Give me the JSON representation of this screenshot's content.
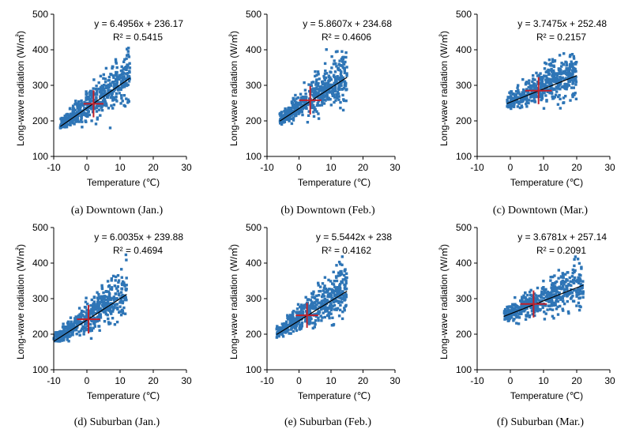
{
  "chart_data": [
    {
      "type": "scatter",
      "caption": "(a) Downtown (Jan.)",
      "xlabel": "Temperature (℃)",
      "ylabel": "Long-wave radiation (W/㎡)",
      "xlim": [
        -10,
        30
      ],
      "ylim": [
        100,
        500
      ],
      "xticks": [
        "-10",
        "0",
        "10",
        "20",
        "30"
      ],
      "yticks": [
        "100",
        "200",
        "300",
        "400",
        "500"
      ],
      "equation": "y = 6.4956x + 236.17",
      "r2": "R² = 0.5415",
      "slope": 6.4956,
      "intercept": 236.17,
      "trend_x": [
        -8,
        13
      ],
      "data_x_range": [
        -8,
        13
      ],
      "mean": [
        2,
        248
      ],
      "mean_sd": [
        3,
        38
      ],
      "series": [
        {
          "name": "observations",
          "count": 500
        }
      ]
    },
    {
      "type": "scatter",
      "caption": "(b) Downtown (Feb.)",
      "xlabel": "Temperature (℃)",
      "ylabel": "Long-wave radiation (W/㎡)",
      "xlim": [
        -10,
        30
      ],
      "ylim": [
        100,
        500
      ],
      "xticks": [
        "-10",
        "0",
        "10",
        "20",
        "30"
      ],
      "yticks": [
        "100",
        "200",
        "300",
        "400",
        "500"
      ],
      "equation": "y = 5.8607x + 234.68",
      "r2": "R² = 0.4606",
      "slope": 5.8607,
      "intercept": 234.68,
      "trend_x": [
        -6,
        15
      ],
      "data_x_range": [
        -6,
        15
      ],
      "mean": [
        3.5,
        258
      ],
      "mean_sd": [
        3.5,
        40
      ],
      "series": [
        {
          "name": "observations",
          "count": 500
        }
      ]
    },
    {
      "type": "scatter",
      "caption": "(c) Downtown (Mar.)",
      "xlabel": "Temperature (℃)",
      "ylabel": "Long-wave radiation (W/㎡)",
      "xlim": [
        -10,
        30
      ],
      "ylim": [
        100,
        500
      ],
      "xticks": [
        "-10",
        "0",
        "10",
        "20",
        "30"
      ],
      "yticks": [
        "100",
        "200",
        "300",
        "400",
        "500"
      ],
      "equation": "y = 3.7475x + 252.48",
      "r2": "R² = 0.2157",
      "slope": 3.7475,
      "intercept": 252.48,
      "trend_x": [
        -1,
        20
      ],
      "data_x_range": [
        -1,
        20
      ],
      "mean": [
        8.5,
        285
      ],
      "mean_sd": [
        4,
        38
      ],
      "series": [
        {
          "name": "observations",
          "count": 500
        }
      ]
    },
    {
      "type": "scatter",
      "caption": "(d) Suburban (Jan.)",
      "xlabel": "Temperature (℃)",
      "ylabel": "Long-wave radiation (W/㎡)",
      "xlim": [
        -10,
        30
      ],
      "ylim": [
        100,
        500
      ],
      "xticks": [
        "-10",
        "0",
        "10",
        "20",
        "30"
      ],
      "yticks": [
        "100",
        "200",
        "300",
        "400",
        "500"
      ],
      "equation": "y = 6.0035x + 239.88",
      "r2": "R² = 0.4694",
      "slope": 6.0035,
      "intercept": 239.88,
      "trend_x": [
        -10,
        12
      ],
      "data_x_range": [
        -10,
        12
      ],
      "mean": [
        0.5,
        242
      ],
      "mean_sd": [
        3.5,
        40
      ],
      "series": [
        {
          "name": "observations",
          "count": 500
        }
      ]
    },
    {
      "type": "scatter",
      "caption": "(e) Suburban (Feb.)",
      "xlabel": "Temperature (℃)",
      "ylabel": "Long-wave radiation (W/㎡)",
      "xlim": [
        -10,
        30
      ],
      "ylim": [
        100,
        500
      ],
      "xticks": [
        "-10",
        "0",
        "10",
        "20",
        "30"
      ],
      "yticks": [
        "100",
        "200",
        "300",
        "400",
        "500"
      ],
      "equation": "y = 5.5442x + 238",
      "r2": "R² = 0.4162",
      "slope": 5.5442,
      "intercept": 238,
      "trend_x": [
        -7,
        15
      ],
      "data_x_range": [
        -7,
        15
      ],
      "mean": [
        2.5,
        253
      ],
      "mean_sd": [
        3.5,
        35
      ],
      "series": [
        {
          "name": "observations",
          "count": 500
        }
      ]
    },
    {
      "type": "scatter",
      "caption": "(f) Suburban (Mar.)",
      "xlabel": "Temperature (℃)",
      "ylabel": "Long-wave radiation (W/㎡)",
      "xlim": [
        -10,
        30
      ],
      "ylim": [
        100,
        500
      ],
      "xticks": [
        "-10",
        "0",
        "10",
        "20",
        "30"
      ],
      "yticks": [
        "100",
        "200",
        "300",
        "400",
        "500"
      ],
      "equation": "y = 3.6781x + 257.14",
      "r2": "R² = 0.2091",
      "slope": 3.6781,
      "intercept": 257.14,
      "trend_x": [
        -2,
        22
      ],
      "data_x_range": [
        -2,
        22
      ],
      "mean": [
        7,
        285
      ],
      "mean_sd": [
        4,
        38
      ],
      "series": [
        {
          "name": "observations",
          "count": 500
        }
      ]
    }
  ],
  "colors": {
    "points": "#2e75b6",
    "trendline": "#000000",
    "mean_cross": "#c0202a",
    "axis": "#000000"
  }
}
